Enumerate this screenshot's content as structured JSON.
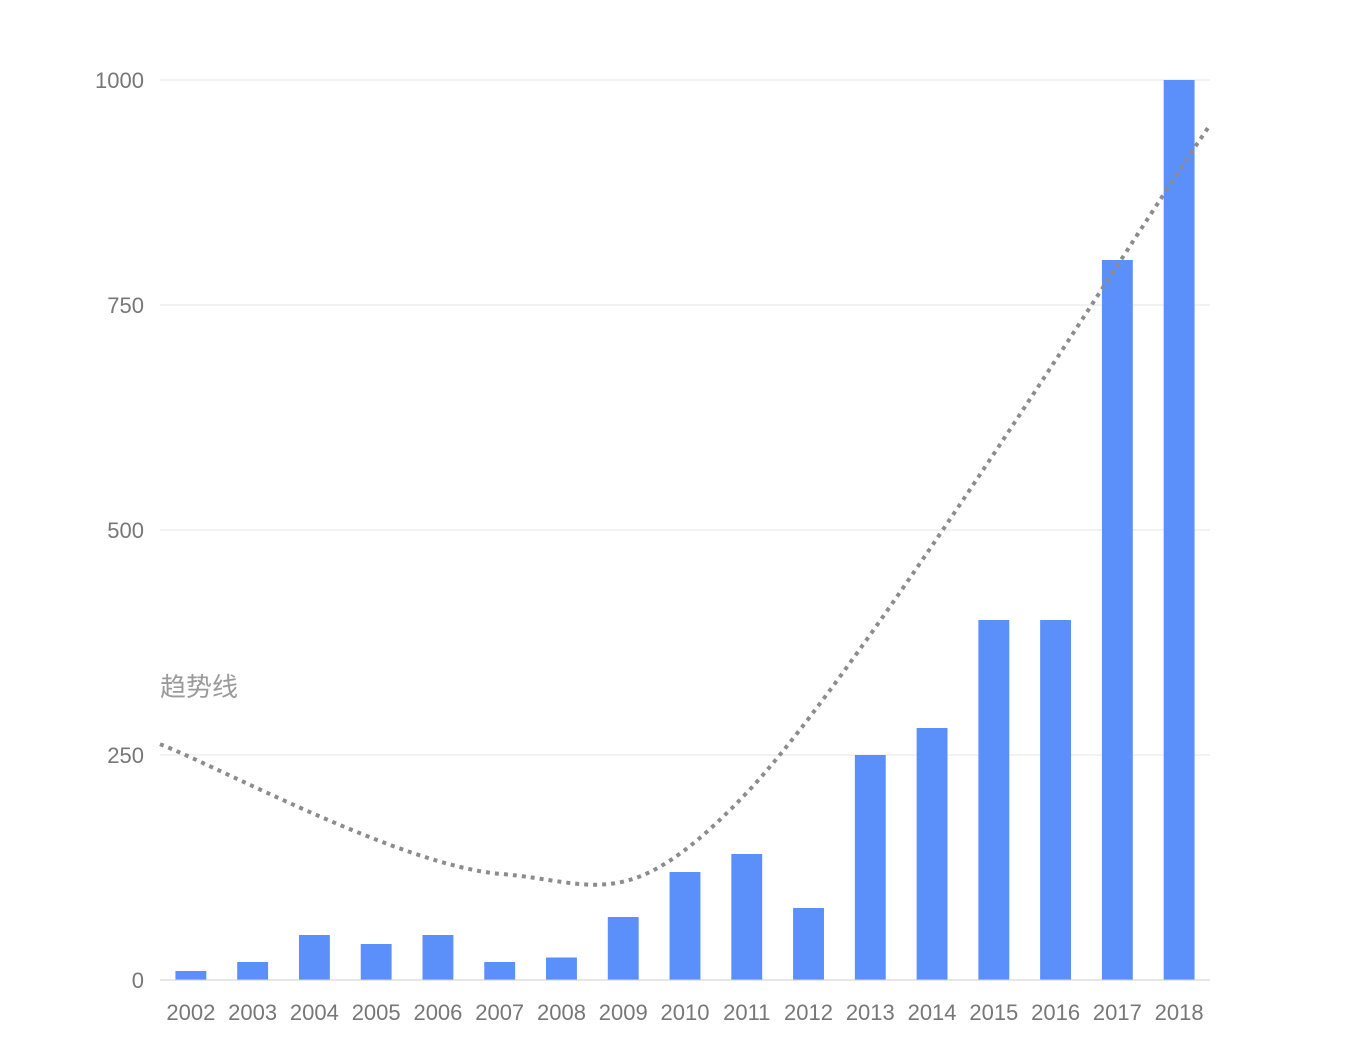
{
  "chart_data": {
    "type": "bar",
    "categories": [
      "2002",
      "2003",
      "2004",
      "2005",
      "2006",
      "2007",
      "2008",
      "2009",
      "2010",
      "2011",
      "2012",
      "2013",
      "2014",
      "2015",
      "2016",
      "2017",
      "2018"
    ],
    "values": [
      10,
      20,
      50,
      40,
      50,
      20,
      25,
      70,
      120,
      140,
      80,
      250,
      280,
      400,
      400,
      800,
      1000
    ],
    "ylim": [
      0,
      1000
    ],
    "yticks": [
      0,
      250,
      500,
      750,
      1000
    ],
    "ytick_labels": [
      "0",
      "250",
      "500",
      "750",
      "1000"
    ],
    "grid": true,
    "bar_color": "#5b8ff9",
    "trendline": {
      "label": "趋势线",
      "style": "dotted",
      "color": "#8c8c8c",
      "type": "polynomial",
      "points": [
        [
          2002,
          262
        ],
        [
          2007,
          118
        ],
        [
          2011,
          208
        ],
        [
          2018,
          950
        ]
      ]
    }
  }
}
